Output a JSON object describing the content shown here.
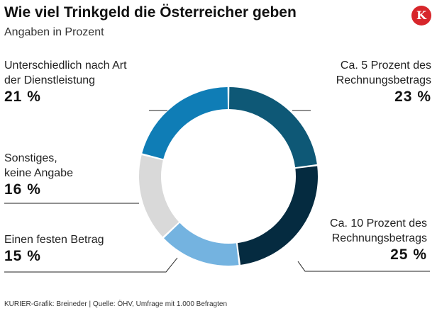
{
  "title": "Wie viel Trinkgeld die Österreicher geben",
  "subtitle": "Angaben in Prozent",
  "logo": "K",
  "source": "KURIER-Grafik: Breineder | Quelle: ÖHV, Umfrage mit 1.000 Befragten",
  "chart_data": {
    "type": "pie",
    "donut": true,
    "slices": [
      {
        "label": "Ca. 5 Prozent des Rechnungsbetrags",
        "label_lines": [
          "Ca. 5 Prozent des",
          "Rechnungsbetrags"
        ],
        "value": 23,
        "display": "23 %",
        "color": "#0e5876"
      },
      {
        "label": "Ca. 10 Prozent des Rechnungsbetrags",
        "label_lines": [
          "Ca. 10 Prozent des",
          "Rechnungsbetrags"
        ],
        "value": 25,
        "display": "25 %",
        "color": "#052b40"
      },
      {
        "label": "Einen festen Betrag",
        "label_lines": [
          "Einen festen Betrag"
        ],
        "value": 15,
        "display": "15 %",
        "color": "#74b3e0"
      },
      {
        "label": "Sonstiges, keine Angabe",
        "label_lines": [
          "Sonstiges,",
          "keine Angabe"
        ],
        "value": 16,
        "display": "16 %",
        "color": "#d9d9d9"
      },
      {
        "label": "Unterschiedlich nach Art der Dienstleistung",
        "label_lines": [
          "Unterschiedlich nach Art",
          "der Dienstleistung"
        ],
        "value": 21,
        "display": "21 %",
        "color": "#0f7db6"
      }
    ]
  }
}
